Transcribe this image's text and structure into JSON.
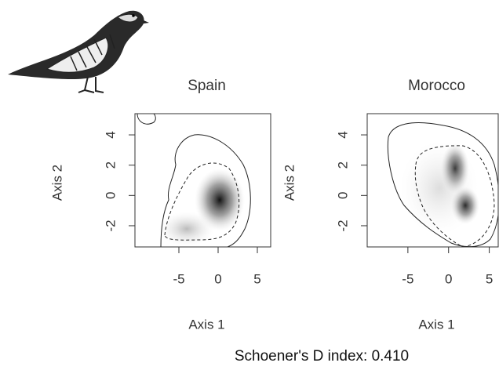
{
  "chart_data": [
    {
      "type": "density",
      "title": "Spain",
      "x_label": "Axis 1",
      "y_label": "Axis 2",
      "xlim": [
        -10.6,
        6.7
      ],
      "ylim": [
        -3.4,
        5.4
      ],
      "xticks": [
        -5,
        0,
        5
      ],
      "yticks": [
        -2,
        0,
        2,
        4
      ]
    },
    {
      "type": "density",
      "title": "Morocco",
      "x_label": "Axis 1",
      "y_label": "Axis 2",
      "xlim": [
        -10,
        6.1
      ],
      "ylim": [
        -3.4,
        5.4
      ],
      "xticks": [
        -5,
        0,
        5
      ],
      "yticks": [
        -2,
        0,
        2,
        4
      ]
    }
  ],
  "caption": "Schoener's D index: 0.410"
}
